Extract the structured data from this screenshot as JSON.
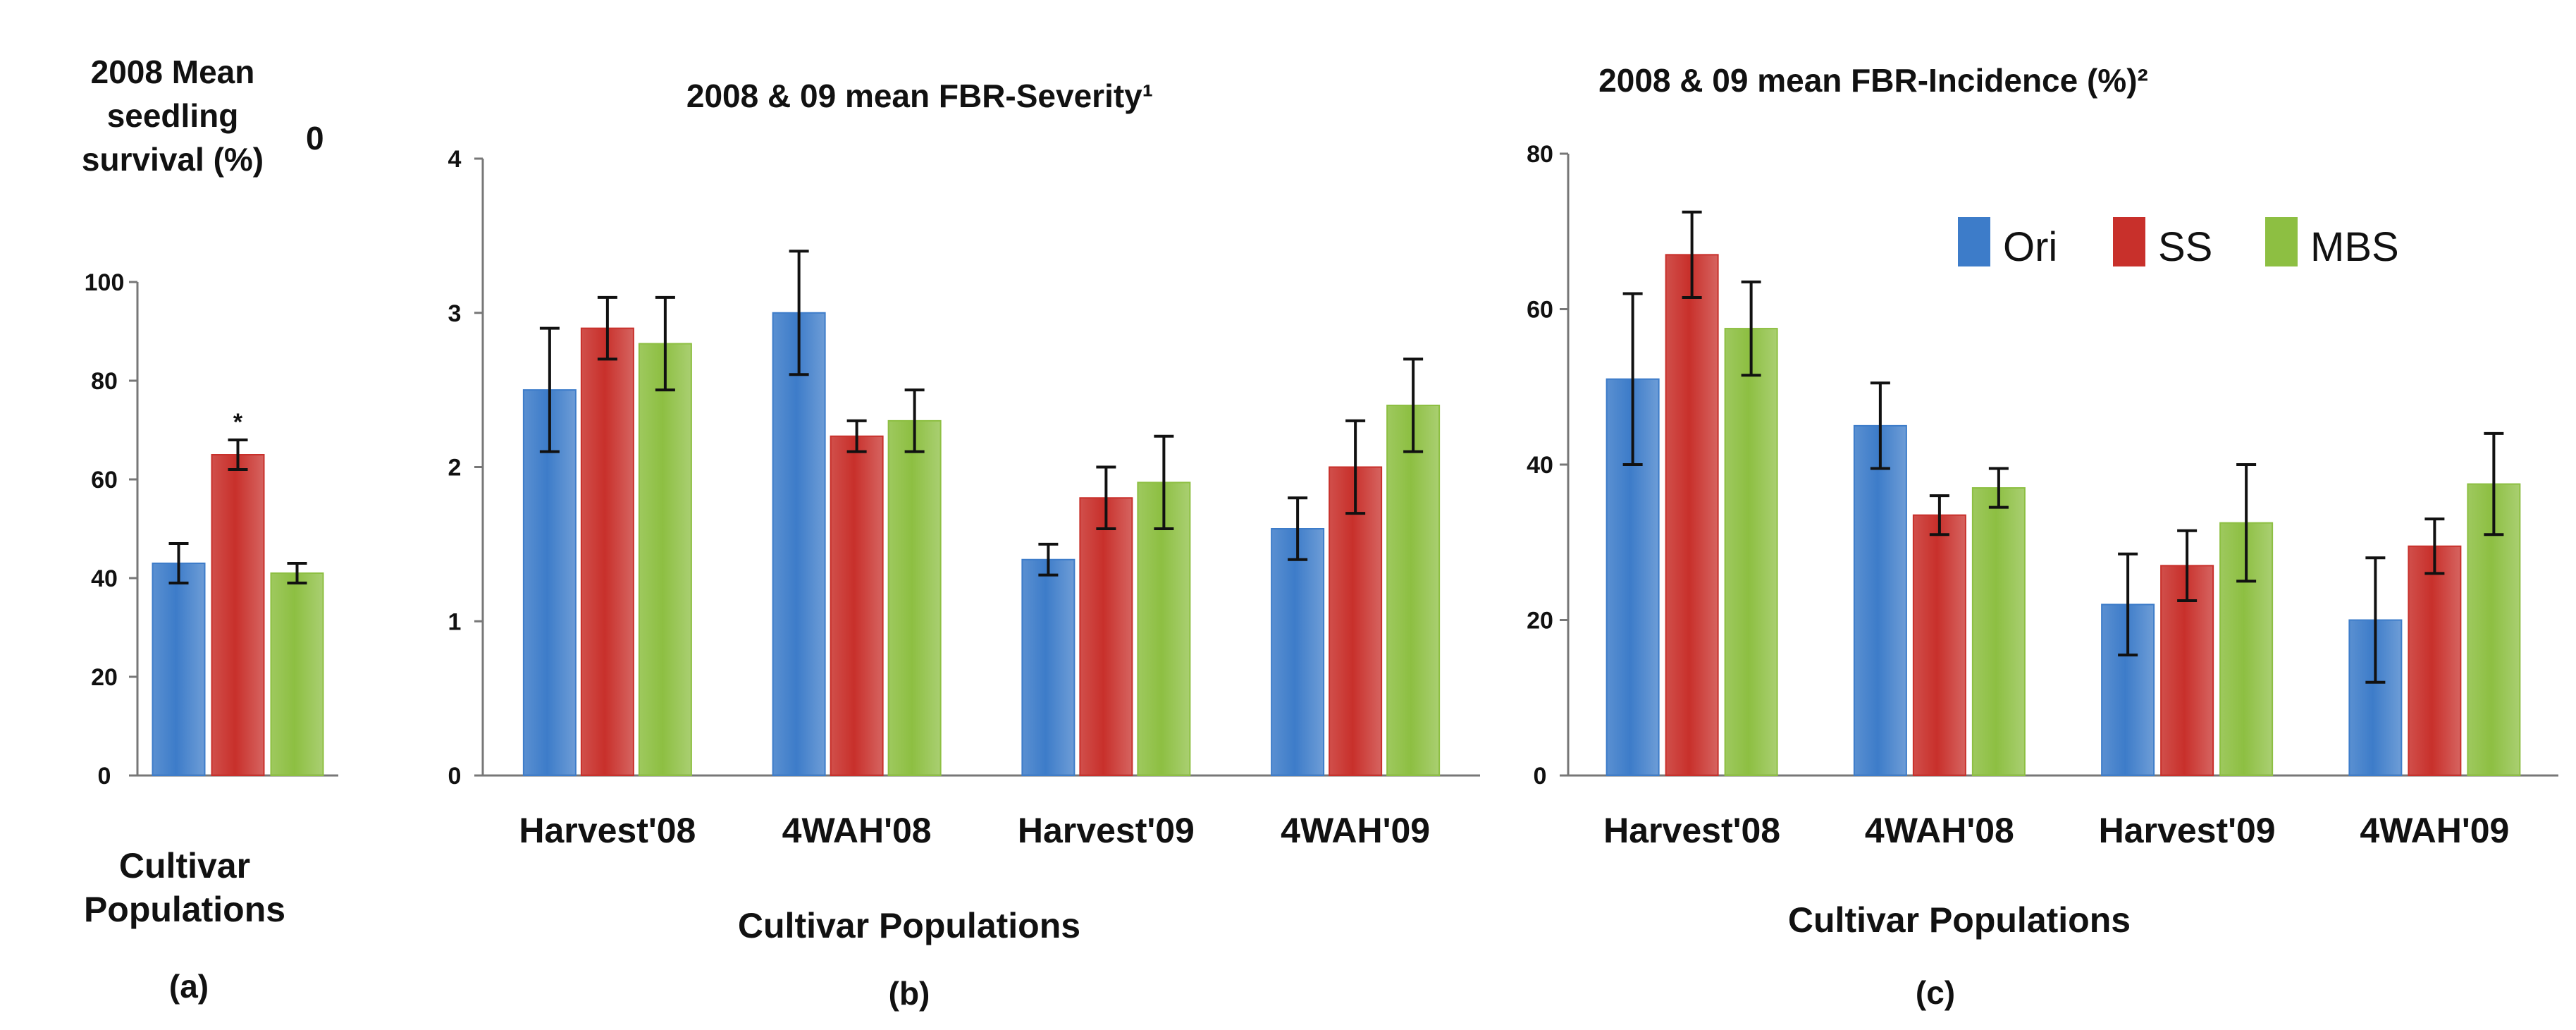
{
  "colors": {
    "Ori": "#3d7cc9",
    "SS": "#c8302b",
    "MBS": "#8dbf42"
  },
  "legend": [
    "Ori",
    "SS",
    "MBS"
  ],
  "chart_data": [
    {
      "id": "a",
      "type": "bar",
      "title": [
        "2008 Mean",
        "seedling",
        "survival (%)"
      ],
      "title_superscript": "0",
      "panel_label": "(a)",
      "categories": [
        [
          "Cultivar",
          "Populations"
        ]
      ],
      "xlabel": "",
      "ylim": [
        0,
        100
      ],
      "yticks": [
        0,
        20,
        40,
        60,
        80,
        100
      ],
      "series": [
        {
          "name": "Ori",
          "values": [
            43
          ],
          "err": [
            4
          ]
        },
        {
          "name": "SS",
          "values": [
            65
          ],
          "err": [
            3
          ]
        },
        {
          "name": "MBS",
          "values": [
            41
          ],
          "err": [
            2
          ]
        }
      ],
      "annotations": [
        {
          "series": "SS",
          "category": 0,
          "text": "*"
        }
      ]
    },
    {
      "id": "b",
      "type": "bar",
      "title": [
        "2008 & 09 mean FBR-Severity¹"
      ],
      "panel_label": "(b)",
      "categories": [
        "Harvest'08",
        "4WAH'08",
        "Harvest'09",
        "4WAH'09"
      ],
      "xlabel": "Cultivar Populations",
      "ylim": [
        0,
        4
      ],
      "yticks": [
        0,
        1,
        2,
        3,
        4
      ],
      "series": [
        {
          "name": "Ori",
          "values": [
            2.5,
            3.0,
            1.4,
            1.6
          ],
          "err": [
            0.4,
            0.4,
            0.1,
            0.2
          ]
        },
        {
          "name": "SS",
          "values": [
            2.9,
            2.2,
            1.8,
            2.0
          ],
          "err": [
            0.2,
            0.1,
            0.2,
            0.3
          ]
        },
        {
          "name": "MBS",
          "values": [
            2.8,
            2.3,
            1.9,
            2.4
          ],
          "err": [
            0.3,
            0.2,
            0.3,
            0.3
          ]
        }
      ]
    },
    {
      "id": "c",
      "type": "bar",
      "title": [
        "2008 & 09 mean FBR-Incidence (%)²"
      ],
      "panel_label": "(c)",
      "categories": [
        "Harvest'08",
        "4WAH'08",
        "Harvest'09",
        "4WAH'09"
      ],
      "xlabel": "Cultivar Populations",
      "ylim": [
        0,
        80
      ],
      "yticks": [
        0,
        20,
        40,
        60,
        80
      ],
      "legend_position": "top-right",
      "series": [
        {
          "name": "Ori",
          "values": [
            51,
            45,
            22,
            20
          ],
          "err": [
            11,
            5.5,
            6.5,
            8
          ]
        },
        {
          "name": "SS",
          "values": [
            67,
            33.5,
            27,
            29.5
          ],
          "err": [
            5.5,
            2.5,
            4.5,
            3.5
          ]
        },
        {
          "name": "MBS",
          "values": [
            57.5,
            37,
            32.5,
            37.5
          ],
          "err": [
            6,
            2.5,
            7.5,
            6.5
          ]
        }
      ]
    }
  ]
}
